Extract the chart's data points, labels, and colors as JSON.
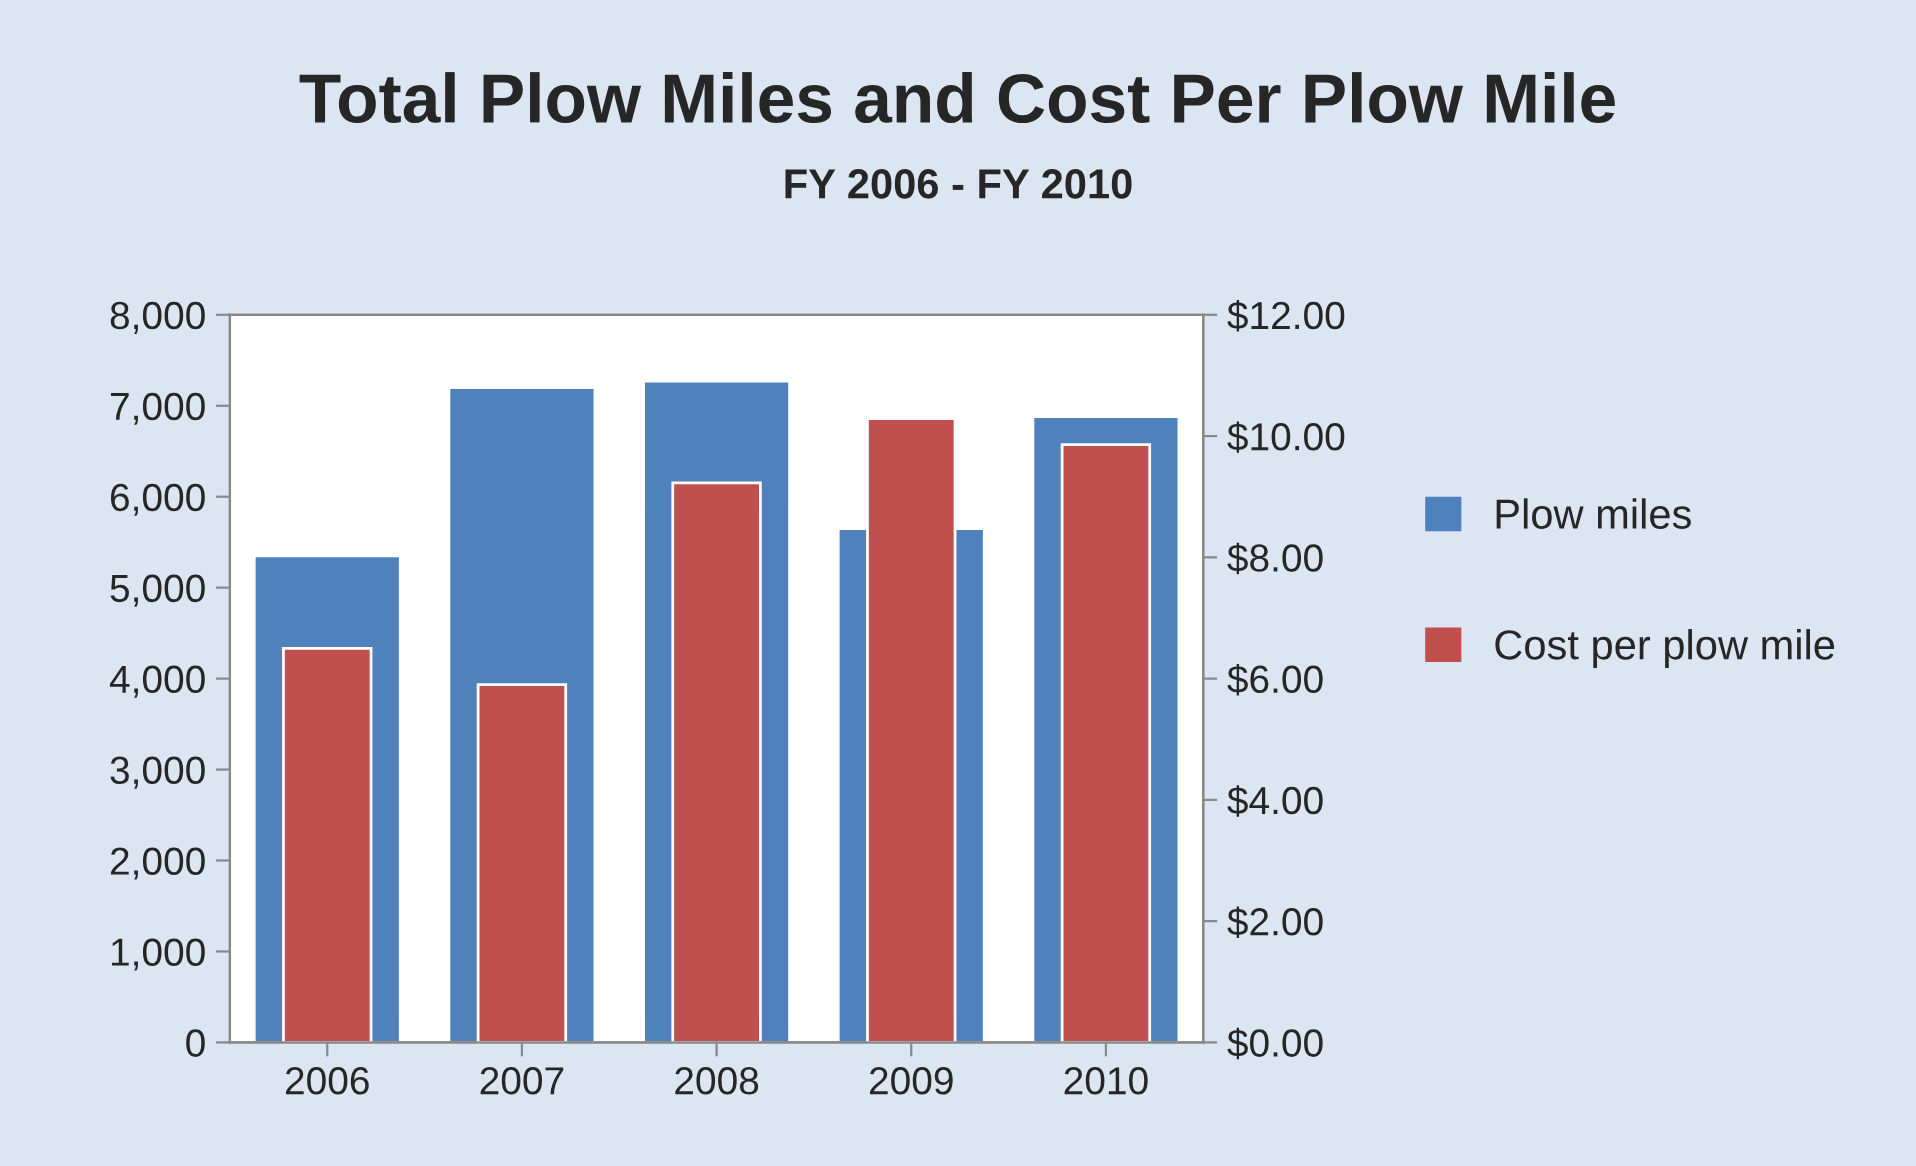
{
  "chart_data": {
    "type": "bar",
    "title": "Total Plow Miles and Cost Per Plow Mile",
    "subtitle": "FY 2006 - FY 2010",
    "categories": [
      "2006",
      "2007",
      "2008",
      "2009",
      "2010"
    ],
    "series": [
      {
        "name": "Plow miles",
        "color": "#4f81bd",
        "values": [
          5350,
          7200,
          7270,
          5650,
          6880
        ]
      },
      {
        "name": "Cost per plow mile",
        "color": "#c0504d",
        "values": [
          6.5,
          5.9,
          9.23,
          10.29,
          9.86
        ],
        "axis": "y2"
      }
    ],
    "ylim": [
      0,
      8000
    ],
    "yticks": [
      0,
      {
        "value": 1000,
        "label": "1,000"
      },
      {
        "value": 2000,
        "label": "2,000"
      },
      {
        "value": 3000,
        "label": "3,000"
      },
      {
        "value": 4000,
        "label": "4,000"
      },
      {
        "value": 5000,
        "label": "5,000"
      },
      {
        "value": 6000,
        "label": "6,000"
      },
      {
        "value": 7000,
        "label": "7,000"
      },
      {
        "value": 8000,
        "label": "8,000"
      }
    ],
    "y2lim": [
      0,
      12
    ],
    "y2ticks": [
      {
        "value": 0,
        "label": "$0.00"
      },
      {
        "value": 2,
        "label": "$2.00"
      },
      {
        "value": 4,
        "label": "$4.00"
      },
      {
        "value": 6,
        "label": "$6.00"
      },
      {
        "value": 8,
        "label": "$8.00"
      },
      {
        "value": 10,
        "label": "$10.00"
      },
      {
        "value": 12,
        "label": "$12.00"
      }
    ],
    "grid": false,
    "legend": "right"
  }
}
